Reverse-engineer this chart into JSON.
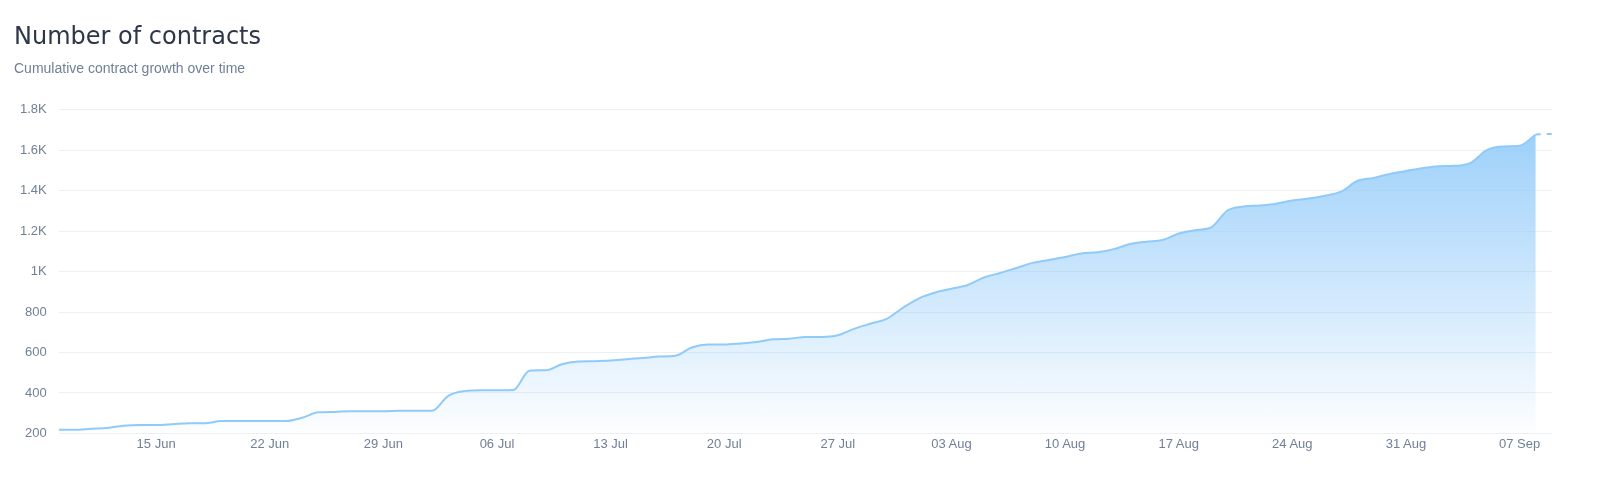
{
  "chart_data": {
    "type": "area",
    "title": "Number of contracts",
    "subtitle": "Cumulative contract growth over time",
    "x": [
      "--06-09",
      "--06-10",
      "--06-11",
      "--06-12",
      "--06-13",
      "--06-14",
      "--06-15",
      "--06-16",
      "--06-17",
      "--06-18",
      "--06-19",
      "--06-20",
      "--06-21",
      "--06-22",
      "--06-23",
      "--06-24",
      "--06-25",
      "--06-26",
      "--06-27",
      "--06-28",
      "--06-29",
      "--06-30",
      "--07-01",
      "--07-02",
      "--07-03",
      "--07-04",
      "--07-05",
      "--07-06",
      "--07-07",
      "--07-08",
      "--07-09",
      "--07-10",
      "--07-11",
      "--07-12",
      "--07-13",
      "--07-14",
      "--07-15",
      "--07-16",
      "--07-17",
      "--07-18",
      "--07-19",
      "--07-20",
      "--07-21",
      "--07-22",
      "--07-23",
      "--07-24",
      "--07-25",
      "--07-26",
      "--07-27",
      "--07-28",
      "--07-29",
      "--07-30",
      "--07-31",
      "--08-01",
      "--08-02",
      "--08-03",
      "--08-04",
      "--08-05",
      "--08-06",
      "--08-07",
      "--08-08",
      "--08-09",
      "--08-10",
      "--08-11",
      "--08-12",
      "--08-13",
      "--08-14",
      "--08-15",
      "--08-16",
      "--08-17",
      "--08-18",
      "--08-19",
      "--08-20",
      "--08-21",
      "--08-22",
      "--08-23",
      "--08-24",
      "--08-25",
      "--08-26",
      "--08-27",
      "--08-28",
      "--08-29",
      "--08-30",
      "--08-31",
      "--09-01",
      "--09-02",
      "--09-03",
      "--09-04",
      "--09-05",
      "--09-06",
      "--09-07",
      "--09-08"
    ],
    "series": [
      {
        "type": "area",
        "color": "#90caf9",
        "values": [
          218,
          218,
          223,
          227,
          238,
          241,
          241,
          245,
          250,
          250,
          261,
          261,
          261,
          261,
          261,
          277,
          304,
          306,
          310,
          310,
          310,
          312,
          312,
          312,
          386,
          409,
          413,
          413,
          414,
          510,
          512,
          542,
          555,
          557,
          560,
          567,
          573,
          580,
          584,
          625,
          640,
          640,
          645,
          652,
          665,
          668,
          677,
          677,
          685,
          717,
          742,
          766,
          821,
          868,
          897,
          915,
          934,
          971,
          993,
          1018,
          1043,
          1057,
          1072,
          1090,
          1096,
          1111,
          1136,
          1148,
          1156,
          1188,
          1205,
          1218,
          1302,
          1322,
          1327,
          1336,
          1351,
          1361,
          1375,
          1395,
          1448,
          1463,
          1483,
          1497,
          1511,
          1521,
          1523,
          1538,
          1602,
          1619,
          1622,
          1678
        ]
      },
      {
        "type": "line",
        "color": "#90caf9",
        "line_style": "dashed",
        "x": [
          "--09-08",
          "--09-09"
        ],
        "values": [
          1678,
          1681
        ]
      }
    ],
    "xlim": [
      "--06-09",
      "--09-09"
    ],
    "xticks": [
      {
        "value": "--06-15",
        "label": "15 Jun"
      },
      {
        "value": "--06-22",
        "label": "22 Jun"
      },
      {
        "value": "--06-29",
        "label": "29 Jun"
      },
      {
        "value": "--07-06",
        "label": "06 Jul"
      },
      {
        "value": "--07-13",
        "label": "13 Jul"
      },
      {
        "value": "--07-20",
        "label": "20 Jul"
      },
      {
        "value": "--07-27",
        "label": "27 Jul"
      },
      {
        "value": "--08-03",
        "label": "03 Aug"
      },
      {
        "value": "--08-10",
        "label": "10 Aug"
      },
      {
        "value": "--08-17",
        "label": "17 Aug"
      },
      {
        "value": "--08-24",
        "label": "24 Aug"
      },
      {
        "value": "--08-31",
        "label": "31 Aug"
      },
      {
        "value": "--09-07",
        "label": "07 Sep"
      }
    ],
    "ylim": [
      200,
      1800
    ],
    "yticks": [
      200,
      400,
      600,
      800,
      {
        "value": 1000,
        "label": "1K"
      },
      {
        "value": 1200,
        "label": "1.2K"
      },
      {
        "value": 1400,
        "label": "1.4K"
      },
      {
        "value": 1600,
        "label": "1.6K"
      },
      {
        "value": 1800,
        "label": "1.8K"
      }
    ],
    "grid": "y",
    "legend": false,
    "marker": "none",
    "line_style": "solid"
  }
}
